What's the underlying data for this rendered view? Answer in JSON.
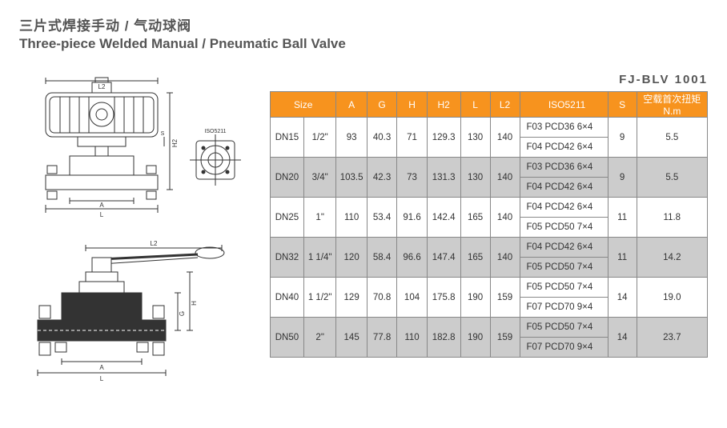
{
  "title_cn": "三片式焊接手动 / 气动球阀",
  "title_en": "Three-piece Welded Manual / Pneumatic Ball Valve",
  "model_no": "FJ-BLV 1001",
  "headers": {
    "size": "Size",
    "a": "A",
    "g": "G",
    "h": "H",
    "h2": "H2",
    "l": "L",
    "l2": "L2",
    "iso": "ISO5211",
    "s": "S",
    "torque": "空载首次扭矩 N.m"
  },
  "rows": [
    {
      "dn": "DN15",
      "size": "1/2\"",
      "a": "93",
      "g": "40.3",
      "h": "71",
      "h2": "129.3",
      "l": "130",
      "l2": "140",
      "iso1": "F03  PCD36  6×4",
      "iso2": "F04  PCD42  6×4",
      "s": "9",
      "nm": "5.5",
      "alt": false
    },
    {
      "dn": "DN20",
      "size": "3/4\"",
      "a": "103.5",
      "g": "42.3",
      "h": "73",
      "h2": "131.3",
      "l": "130",
      "l2": "140",
      "iso1": "F03  PCD36  6×4",
      "iso2": "F04  PCD42  6×4",
      "s": "9",
      "nm": "5.5",
      "alt": true
    },
    {
      "dn": "DN25",
      "size": "1\"",
      "a": "110",
      "g": "53.4",
      "h": "91.6",
      "h2": "142.4",
      "l": "165",
      "l2": "140",
      "iso1": "F04  PCD42  6×4",
      "iso2": "F05  PCD50  7×4",
      "s": "11",
      "nm": "11.8",
      "alt": false
    },
    {
      "dn": "DN32",
      "size": "1 1/4\"",
      "a": "120",
      "g": "58.4",
      "h": "96.6",
      "h2": "147.4",
      "l": "165",
      "l2": "140",
      "iso1": "F04  PCD42  6×4",
      "iso2": "F05  PCD50  7×4",
      "s": "11",
      "nm": "14.2",
      "alt": true
    },
    {
      "dn": "DN40",
      "size": "1 1/2\"",
      "a": "129",
      "g": "70.8",
      "h": "104",
      "h2": "175.8",
      "l": "190",
      "l2": "159",
      "iso1": "F05  PCD50  7×4",
      "iso2": "F07  PCD70  9×4",
      "s": "14",
      "nm": "19.0",
      "alt": false
    },
    {
      "dn": "DN50",
      "size": "2\"",
      "a": "145",
      "g": "77.8",
      "h": "110",
      "h2": "182.8",
      "l": "190",
      "l2": "159",
      "iso1": "F05  PCD50  7×4",
      "iso2": "F07  PCD70  9×4",
      "s": "14",
      "nm": "23.7",
      "alt": true
    }
  ],
  "diagram_labels": {
    "top": {
      "a": "A",
      "l": "L",
      "l2": "L2",
      "h2": "H2",
      "s": "S",
      "iso": "ISO5211"
    },
    "bottom": {
      "a": "A",
      "l": "L",
      "l2": "L2",
      "g": "G",
      "h": "H"
    }
  },
  "colors": {
    "header_bg": "#f7931e",
    "header_text": "#ffffff",
    "border": "#888888",
    "alt_row": "#cccccc",
    "text": "#555555",
    "diagram_stroke": "#333333"
  }
}
